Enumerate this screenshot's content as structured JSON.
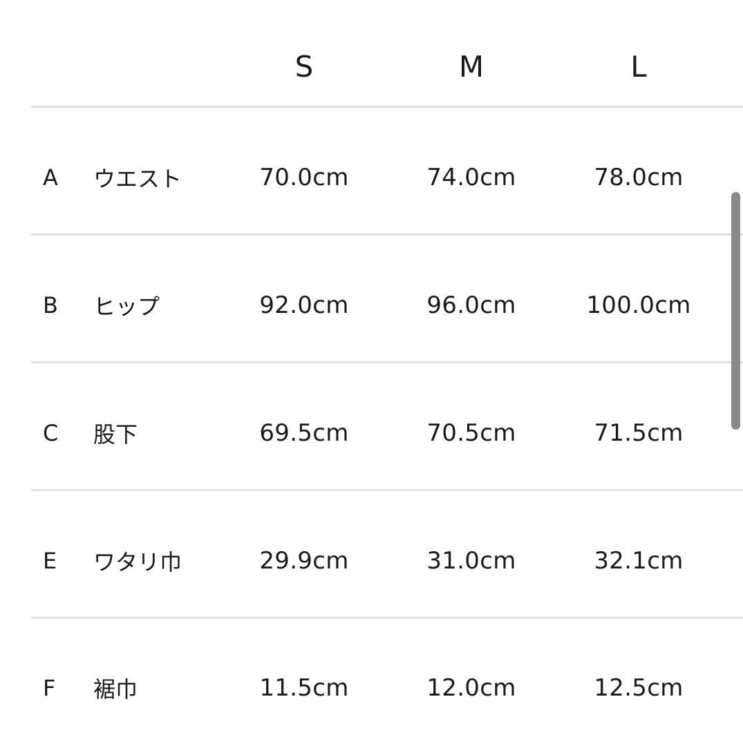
{
  "colors": {
    "background": "#ffffff",
    "text": "#1a1a1a",
    "divider": "#e1e1e1",
    "scrollbar": "#8a8a8a"
  },
  "size_chart": {
    "columns": [
      "S",
      "M",
      "L"
    ],
    "rows": [
      {
        "letter": "A",
        "label": "ウエスト",
        "values": [
          "70.0cm",
          "74.0cm",
          "78.0cm"
        ]
      },
      {
        "letter": "B",
        "label": "ヒップ",
        "values": [
          "92.0cm",
          "96.0cm",
          "100.0cm"
        ]
      },
      {
        "letter": "C",
        "label": "股下",
        "values": [
          "69.5cm",
          "70.5cm",
          "71.5cm"
        ]
      },
      {
        "letter": "E",
        "label": "ワタリ巾",
        "values": [
          "29.9cm",
          "31.0cm",
          "32.1cm"
        ]
      },
      {
        "letter": "F",
        "label": "裾巾",
        "values": [
          "11.5cm",
          "12.0cm",
          "12.5cm"
        ]
      }
    ]
  }
}
